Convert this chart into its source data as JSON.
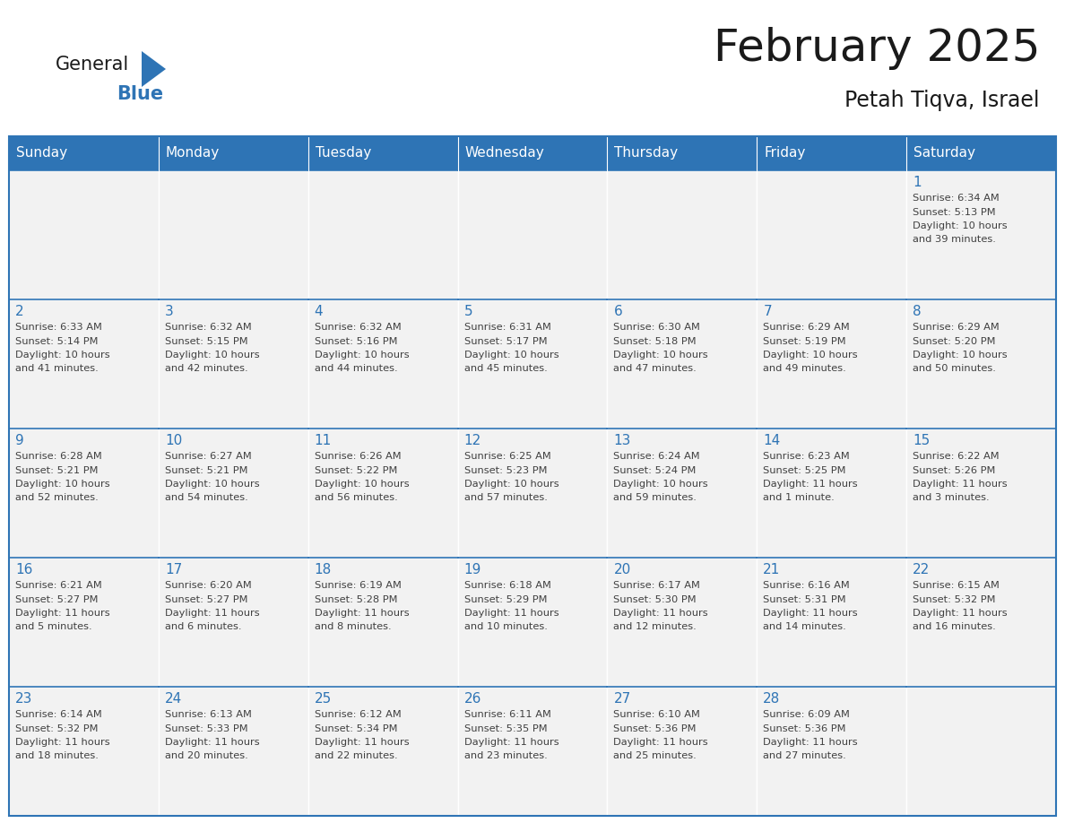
{
  "title": "February 2025",
  "subtitle": "Petah Tiqva, Israel",
  "days_of_week": [
    "Sunday",
    "Monday",
    "Tuesday",
    "Wednesday",
    "Thursday",
    "Friday",
    "Saturday"
  ],
  "header_bg": "#2E74B5",
  "header_text": "#FFFFFF",
  "cell_bg": "#F2F2F2",
  "cell_bg_alt": "#FFFFFF",
  "border_color": "#2E74B5",
  "day_num_color": "#2E74B5",
  "info_text_color": "#404040",
  "title_color": "#1a1a1a",
  "logo_general_color": "#1a1a1a",
  "logo_blue_color": "#2E74B5",
  "logo_triangle_color": "#2E74B5",
  "calendar_data": [
    [
      null,
      null,
      null,
      null,
      null,
      null,
      1
    ],
    [
      2,
      3,
      4,
      5,
      6,
      7,
      8
    ],
    [
      9,
      10,
      11,
      12,
      13,
      14,
      15
    ],
    [
      16,
      17,
      18,
      19,
      20,
      21,
      22
    ],
    [
      23,
      24,
      25,
      26,
      27,
      28,
      null
    ]
  ],
  "sunrise_data": {
    "1": "6:34 AM",
    "2": "6:33 AM",
    "3": "6:32 AM",
    "4": "6:32 AM",
    "5": "6:31 AM",
    "6": "6:30 AM",
    "7": "6:29 AM",
    "8": "6:29 AM",
    "9": "6:28 AM",
    "10": "6:27 AM",
    "11": "6:26 AM",
    "12": "6:25 AM",
    "13": "6:24 AM",
    "14": "6:23 AM",
    "15": "6:22 AM",
    "16": "6:21 AM",
    "17": "6:20 AM",
    "18": "6:19 AM",
    "19": "6:18 AM",
    "20": "6:17 AM",
    "21": "6:16 AM",
    "22": "6:15 AM",
    "23": "6:14 AM",
    "24": "6:13 AM",
    "25": "6:12 AM",
    "26": "6:11 AM",
    "27": "6:10 AM",
    "28": "6:09 AM"
  },
  "sunset_data": {
    "1": "5:13 PM",
    "2": "5:14 PM",
    "3": "5:15 PM",
    "4": "5:16 PM",
    "5": "5:17 PM",
    "6": "5:18 PM",
    "7": "5:19 PM",
    "8": "5:20 PM",
    "9": "5:21 PM",
    "10": "5:21 PM",
    "11": "5:22 PM",
    "12": "5:23 PM",
    "13": "5:24 PM",
    "14": "5:25 PM",
    "15": "5:26 PM",
    "16": "5:27 PM",
    "17": "5:27 PM",
    "18": "5:28 PM",
    "19": "5:29 PM",
    "20": "5:30 PM",
    "21": "5:31 PM",
    "22": "5:32 PM",
    "23": "5:32 PM",
    "24": "5:33 PM",
    "25": "5:34 PM",
    "26": "5:35 PM",
    "27": "5:36 PM",
    "28": "5:36 PM"
  },
  "daylight_data": {
    "1": "10 hours\nand 39 minutes.",
    "2": "10 hours\nand 41 minutes.",
    "3": "10 hours\nand 42 minutes.",
    "4": "10 hours\nand 44 minutes.",
    "5": "10 hours\nand 45 minutes.",
    "6": "10 hours\nand 47 minutes.",
    "7": "10 hours\nand 49 minutes.",
    "8": "10 hours\nand 50 minutes.",
    "9": "10 hours\nand 52 minutes.",
    "10": "10 hours\nand 54 minutes.",
    "11": "10 hours\nand 56 minutes.",
    "12": "10 hours\nand 57 minutes.",
    "13": "10 hours\nand 59 minutes.",
    "14": "11 hours\nand 1 minute.",
    "15": "11 hours\nand 3 minutes.",
    "16": "11 hours\nand 5 minutes.",
    "17": "11 hours\nand 6 minutes.",
    "18": "11 hours\nand 8 minutes.",
    "19": "11 hours\nand 10 minutes.",
    "20": "11 hours\nand 12 minutes.",
    "21": "11 hours\nand 14 minutes.",
    "22": "11 hours\nand 16 minutes.",
    "23": "11 hours\nand 18 minutes.",
    "24": "11 hours\nand 20 minutes.",
    "25": "11 hours\nand 22 minutes.",
    "26": "11 hours\nand 23 minutes.",
    "27": "11 hours\nand 25 minutes.",
    "28": "11 hours\nand 27 minutes."
  }
}
